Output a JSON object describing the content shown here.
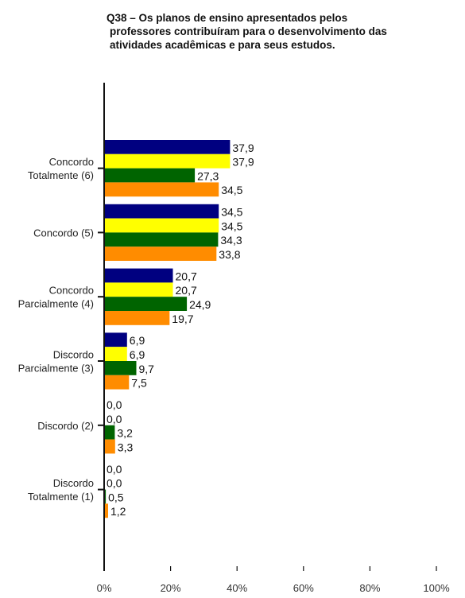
{
  "chart_data": {
    "type": "bar",
    "orientation": "horizontal",
    "title_lines": [
      "Q38 – Os planos de ensino apresentados pelos",
      "professores contribuíram para o desenvolvimento das",
      "atividades acadêmicas e para seus estudos."
    ],
    "categories": [
      [
        "Concordo",
        "Totalmente (6)"
      ],
      [
        "Concordo (5)"
      ],
      [
        "Concordo",
        "Parcialmente (4)"
      ],
      [
        "Discordo",
        "Parcialmente (3)"
      ],
      [
        "Discordo (2)"
      ],
      [
        "Discordo",
        "Totalmente (1)"
      ]
    ],
    "series": [
      {
        "color": "#000080",
        "values": [
          37.9,
          34.5,
          20.7,
          6.9,
          0.0,
          0.0
        ],
        "labels": [
          "37,9",
          "34,5",
          "20,7",
          "6,9",
          "0,0",
          "0,0"
        ]
      },
      {
        "color": "#ffff00",
        "values": [
          37.9,
          34.5,
          20.7,
          6.9,
          0.0,
          0.0
        ],
        "labels": [
          "37,9",
          "34,5",
          "20,7",
          "6,9",
          "0,0",
          "0,0"
        ]
      },
      {
        "color": "#006400",
        "values": [
          27.3,
          34.3,
          24.9,
          9.7,
          3.2,
          0.5
        ],
        "labels": [
          "27,3",
          "34,3",
          "24,9",
          "9,7",
          "3,2",
          "0,5"
        ]
      },
      {
        "color": "#ff8c00",
        "values": [
          34.5,
          33.8,
          19.7,
          7.5,
          3.3,
          1.2
        ],
        "labels": [
          "34,5",
          "33,8",
          "19,7",
          "7,5",
          "3,3",
          "1,2"
        ]
      }
    ],
    "xlim": [
      0,
      100
    ],
    "xticks": [
      0,
      20,
      40,
      60,
      80,
      100
    ],
    "xtick_labels": [
      "0%",
      "20%",
      "40%",
      "60%",
      "80%",
      "100%"
    ],
    "grid": false,
    "legend": "none"
  }
}
